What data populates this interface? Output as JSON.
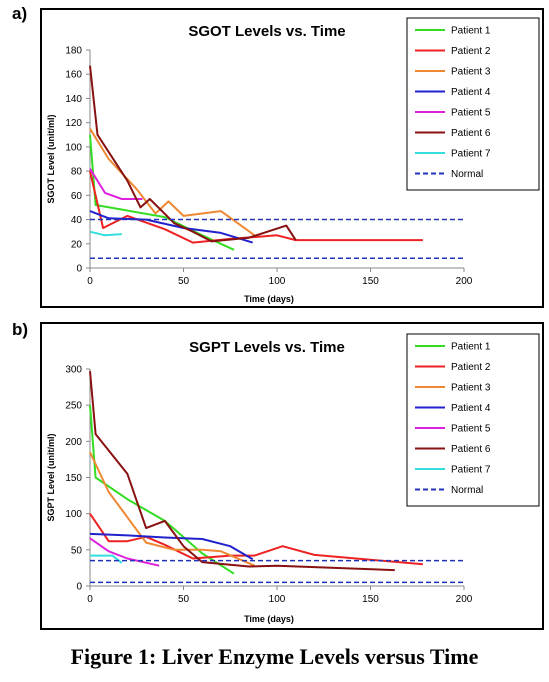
{
  "panel_labels": [
    "a)",
    "b)"
  ],
  "caption": "Figure 1: Liver Enzyme Levels versus Time",
  "chart_data": [
    {
      "type": "line",
      "title": "SGOT Levels vs. Time",
      "xlabel": "Time (days)",
      "ylabel": "SGOT Level (unit/ml)",
      "xlim": [
        0,
        200
      ],
      "ylim": [
        0,
        180
      ],
      "xticks": [
        0,
        50,
        100,
        150,
        200
      ],
      "yticks": [
        0,
        20,
        40,
        60,
        80,
        100,
        120,
        140,
        160,
        180
      ],
      "legend_position": "right",
      "series": [
        {
          "name": "Patient 1",
          "color": "#33dd22",
          "x": [
            0,
            3,
            40,
            60,
            77
          ],
          "y": [
            110,
            52,
            42,
            27,
            15
          ]
        },
        {
          "name": "Patient 2",
          "color": "#ee2222",
          "x": [
            0,
            7,
            20,
            40,
            55,
            75,
            100,
            110,
            140,
            178
          ],
          "y": [
            80,
            33,
            43,
            32,
            21,
            24,
            27,
            23,
            23,
            23
          ]
        },
        {
          "name": "Patient 3",
          "color": "#ee8833",
          "x": [
            0,
            10,
            25,
            35,
            42,
            50,
            70,
            88
          ],
          "y": [
            115,
            90,
            65,
            45,
            55,
            43,
            47,
            27
          ]
        },
        {
          "name": "Patient 4",
          "color": "#2222cc",
          "x": [
            0,
            10,
            30,
            50,
            70,
            87
          ],
          "y": [
            47,
            41,
            40,
            33,
            29,
            21
          ]
        },
        {
          "name": "Patient 5",
          "color": "#dd22dd",
          "x": [
            0,
            8,
            17,
            28
          ],
          "y": [
            82,
            62,
            57,
            57
          ]
        },
        {
          "name": "Patient 6",
          "color": "#881111",
          "x": [
            0,
            4,
            20,
            27,
            32,
            45,
            55,
            65,
            85,
            105,
            110
          ],
          "y": [
            167,
            110,
            72,
            50,
            57,
            37,
            30,
            22,
            25,
            35,
            23
          ]
        },
        {
          "name": "Patient 7",
          "color": "#33dddd",
          "x": [
            0,
            8,
            17
          ],
          "y": [
            30,
            27,
            28
          ]
        },
        {
          "name": "Normal",
          "color": "#2233bb",
          "dashed": true,
          "lines": [
            8,
            40
          ]
        }
      ]
    },
    {
      "type": "line",
      "title": "SGPT Levels vs. Time",
      "xlabel": "Time (days)",
      "ylabel": "SGPT Level (unit/ml)",
      "xlim": [
        0,
        200
      ],
      "ylim": [
        0,
        300
      ],
      "xticks": [
        0,
        50,
        100,
        150,
        200
      ],
      "yticks": [
        0,
        50,
        100,
        150,
        200,
        250,
        300
      ],
      "legend_position": "right",
      "series": [
        {
          "name": "Patient 1",
          "color": "#33dd22",
          "x": [
            0,
            3,
            20,
            40,
            60,
            77
          ],
          "y": [
            250,
            150,
            120,
            90,
            45,
            17
          ]
        },
        {
          "name": "Patient 2",
          "color": "#ee2222",
          "x": [
            0,
            10,
            20,
            30,
            40,
            55,
            75,
            88,
            103,
            120,
            178
          ],
          "y": [
            100,
            62,
            62,
            68,
            57,
            38,
            42,
            42,
            55,
            43,
            30
          ]
        },
        {
          "name": "Patient 3",
          "color": "#ee8833",
          "x": [
            0,
            10,
            20,
            30,
            45,
            60,
            70,
            88
          ],
          "y": [
            185,
            130,
            95,
            60,
            50,
            50,
            48,
            28
          ]
        },
        {
          "name": "Patient 4",
          "color": "#2222cc",
          "x": [
            0,
            20,
            40,
            60,
            75,
            87
          ],
          "y": [
            72,
            70,
            67,
            65,
            55,
            37
          ]
        },
        {
          "name": "Patient 5",
          "color": "#dd22dd",
          "x": [
            0,
            10,
            20,
            37
          ],
          "y": [
            66,
            48,
            38,
            28
          ]
        },
        {
          "name": "Patient 6",
          "color": "#881111",
          "x": [
            0,
            3,
            20,
            30,
            40,
            50,
            60,
            85,
            100,
            163
          ],
          "y": [
            297,
            210,
            155,
            80,
            90,
            55,
            33,
            27,
            28,
            22
          ]
        },
        {
          "name": "Patient 7",
          "color": "#33dddd",
          "x": [
            0,
            12,
            17
          ],
          "y": [
            42,
            42,
            32
          ]
        },
        {
          "name": "Normal",
          "color": "#2233bb",
          "dashed": true,
          "lines": [
            5,
            35
          ]
        }
      ]
    }
  ]
}
